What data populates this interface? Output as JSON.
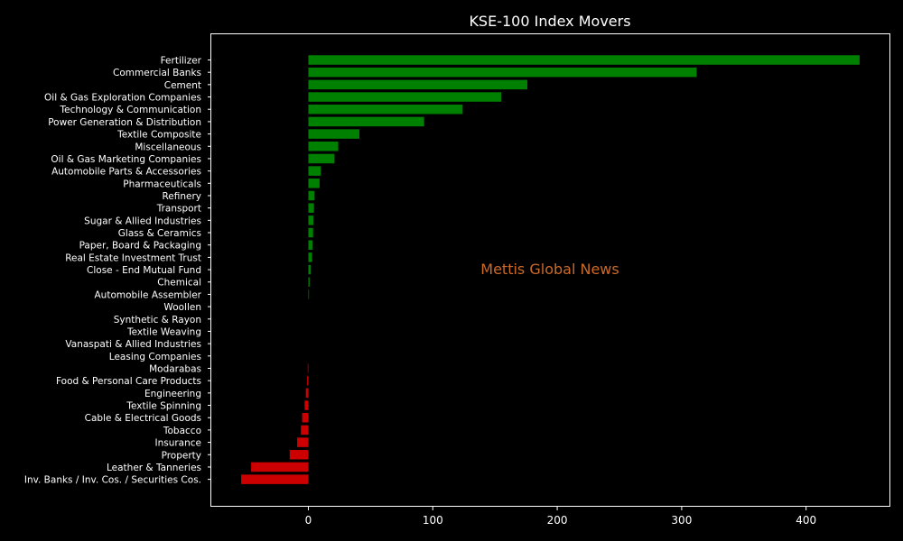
{
  "chart_data": {
    "type": "bar",
    "orientation": "horizontal",
    "title": "KSE-100 Index Movers",
    "xlabel": "",
    "ylabel": "",
    "xlim": [
      -78,
      467
    ],
    "xticks": [
      0,
      100,
      200,
      300,
      400
    ],
    "grid": false,
    "watermark": "Mettis Global News",
    "colors": {
      "positive": "#008000",
      "negative": "#cc0000",
      "background": "#000000",
      "text": "#ffffff",
      "watermark": "#cc6a28"
    },
    "categories": [
      "Fertilizer",
      "Commercial Banks",
      "Cement",
      "Oil & Gas Exploration Companies",
      "Technology & Communication",
      "Power Generation & Distribution",
      "Textile Composite",
      "Miscellaneous",
      "Oil & Gas Marketing Companies",
      "Automobile Parts & Accessories",
      "Pharmaceuticals",
      "Refinery",
      "Transport",
      "Sugar & Allied Industries",
      "Glass & Ceramics",
      "Paper, Board & Packaging",
      "Real Estate Investment Trust",
      "Close - End Mutual Fund",
      "Chemical",
      "Automobile Assembler",
      "Woollen",
      "Synthetic & Rayon",
      "Textile Weaving",
      "Vanaspati & Allied Industries",
      "Leasing Companies",
      "Modarabas",
      "Food & Personal Care Products",
      "Engineering",
      "Textile Spinning",
      "Cable & Electrical Goods",
      "Tobacco",
      "Insurance",
      "Property",
      "Leather & Tanneries",
      "Inv. Banks / Inv. Cos. / Securities Cos."
    ],
    "values": [
      443,
      312,
      176,
      155,
      124,
      93,
      41,
      24,
      21,
      10,
      9,
      5,
      4.5,
      4,
      3.8,
      3.5,
      3,
      2,
      1,
      0.5,
      0,
      0,
      0,
      0,
      0,
      -0.5,
      -1,
      -2,
      -3,
      -5,
      -6,
      -9,
      -15,
      -46,
      -54
    ]
  }
}
